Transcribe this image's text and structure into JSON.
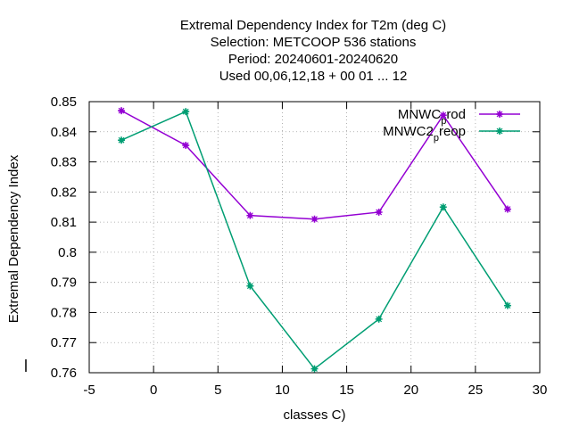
{
  "chart_data": {
    "type": "line",
    "title_lines": [
      "Extremal Dependency Index  for T2m (deg C)",
      "Selection: METCOOP    536 stations",
      "Period: 20240601-20240620",
      "Used  00,06,12,18 + 00 01 ... 12"
    ],
    "xlabel": "classes C)",
    "ylabel": "Extremal Dependency Index",
    "xlim": [
      -5,
      30
    ],
    "ylim": [
      0.76,
      0.85
    ],
    "x_ticks": [
      -5,
      0,
      5,
      10,
      15,
      20,
      25,
      30
    ],
    "x_tick_labels": [
      "-5",
      "0",
      "5",
      "10",
      "15",
      "20",
      "25",
      "30"
    ],
    "y_ticks": [
      0.76,
      0.77,
      0.78,
      0.79,
      0.8,
      0.81,
      0.82,
      0.83,
      0.84,
      0.85
    ],
    "y_tick_labels": [
      "0.76",
      "0.77",
      "0.78",
      "0.79",
      "0.8",
      "0.81",
      "0.82",
      "0.83",
      "0.84",
      "0.85"
    ],
    "grid": true,
    "legend_position": "top-right",
    "x": [
      -2.5,
      2.5,
      7.5,
      12.5,
      17.5,
      22.5,
      27.5
    ],
    "series": [
      {
        "name": "MNWC_prod",
        "legend_main": "MNWC",
        "legend_sub": "p",
        "legend_tail": "rod",
        "color": "#9400d3",
        "values": [
          0.847,
          0.8355,
          0.8122,
          0.811,
          0.8133,
          0.8455,
          0.8143
        ]
      },
      {
        "name": "MNWC2_preop",
        "legend_main": "MNWC2",
        "legend_sub": "p",
        "legend_tail": "reop",
        "color": "#009e73",
        "values": [
          0.8372,
          0.8467,
          0.7888,
          0.7613,
          0.7778,
          0.815,
          0.7823
        ]
      }
    ]
  }
}
